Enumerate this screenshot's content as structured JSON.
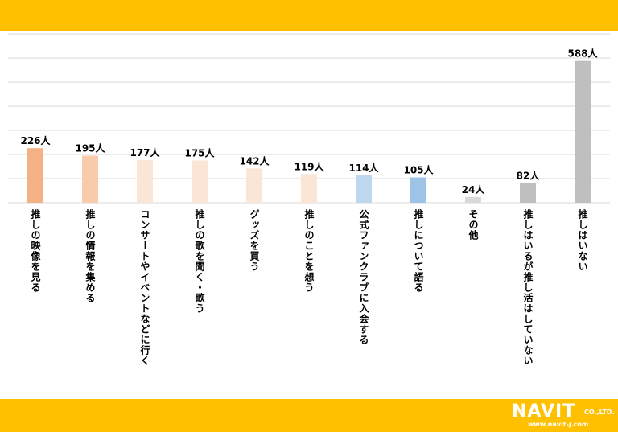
{
  "colors": {
    "banner": "#FFC000",
    "grid": "#D9D9D9",
    "text": "#000000"
  },
  "chart_data": {
    "type": "bar",
    "title": "",
    "xlabel": "",
    "ylabel": "",
    "ylim": [
      0,
      700
    ],
    "grid": true,
    "legend": "none",
    "unit_suffix": "人",
    "categories": [
      "推しの映像を見る",
      "推しの情報を集める",
      "コンサートやイベントなどに行く",
      "推しの歌を聞く・歌う",
      "グッズを買う",
      "推しのことを想う",
      "公式ファンクラブに入会する",
      "推しについて語る",
      "その他",
      "推しはいるが推し活はしていない",
      "推しはいない"
    ],
    "values": [
      226,
      195,
      177,
      175,
      142,
      119,
      114,
      105,
      24,
      82,
      588
    ],
    "value_labels": [
      "226人",
      "195人",
      "177人",
      "175人",
      "142人",
      "119人",
      "114人",
      "105人",
      "24人",
      "82人",
      "588人"
    ],
    "bar_colors": [
      "#F4B183",
      "#F8CBAD",
      "#FBE5D6",
      "#FBE5D6",
      "#FBE5D6",
      "#FBE5D6",
      "#BDD7EE",
      "#9DC3E6",
      "#D9D9D9",
      "#BFBFBF",
      "#BFBFBF"
    ]
  },
  "logo": {
    "main": "NAVIT",
    "suffix": "CO.,LTD.",
    "url": "www.navit-j.com"
  }
}
